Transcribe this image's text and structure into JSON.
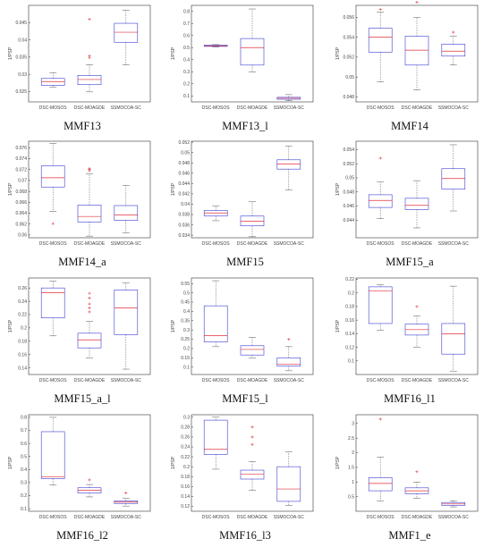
{
  "figure": {
    "colors": {
      "box": "#3b3bd6",
      "median": "#e0303a",
      "whisker": "#555555",
      "outlier": "#e0303a",
      "frame": "#333333"
    }
  },
  "chart_data": [
    {
      "type": "box",
      "title": "MMF13",
      "ylabel": "1/PSP",
      "categories": [
        "DSC-MOSOS",
        "DSC-MOAGDE",
        "SSMOCOA-SC"
      ],
      "ylim": [
        0.022,
        0.05
      ],
      "yticks": [
        0.025,
        0.03,
        0.035,
        0.04,
        0.045
      ],
      "yticklabels": [
        "0.025",
        "0.03",
        "0.035",
        "0.04",
        "0.045"
      ],
      "boxes": [
        {
          "min": 0.0262,
          "q1": 0.0268,
          "median": 0.0279,
          "q3": 0.0288,
          "max": 0.0305,
          "outliers": []
        },
        {
          "min": 0.0249,
          "q1": 0.027,
          "median": 0.0285,
          "q3": 0.0297,
          "max": 0.0328,
          "outliers": [
            0.0348,
            0.0353,
            0.046
          ]
        },
        {
          "min": 0.0327,
          "q1": 0.0393,
          "median": 0.0422,
          "q3": 0.0448,
          "max": 0.0486,
          "outliers": []
        }
      ]
    },
    {
      "type": "box",
      "title": "MMF13_l",
      "ylabel": "1/PSP",
      "categories": [
        "DSC-MOSOS",
        "DSC-MOAGDE",
        "SSMOCOA-SC"
      ],
      "ylim": [
        0.05,
        0.85
      ],
      "yticks": [
        0.1,
        0.2,
        0.3,
        0.4,
        0.5,
        0.6,
        0.7,
        0.8
      ],
      "yticklabels": [
        "0.1",
        "0.2",
        "0.3",
        "0.4",
        "0.5",
        "0.6",
        "0.7",
        "0.8"
      ],
      "boxes": [
        {
          "min": 0.505,
          "q1": 0.51,
          "median": 0.515,
          "q3": 0.52,
          "max": 0.525,
          "outliers": []
        },
        {
          "min": 0.3,
          "q1": 0.355,
          "median": 0.5,
          "q3": 0.575,
          "max": 0.82,
          "outliers": []
        },
        {
          "min": 0.06,
          "q1": 0.072,
          "median": 0.08,
          "q3": 0.088,
          "max": 0.11,
          "outliers": []
        }
      ]
    },
    {
      "type": "box",
      "title": "MMF14",
      "ylabel": "1/PSP",
      "categories": [
        "DSC-MOSOS",
        "DSC-MOAGDE",
        "SSMOCOA-SC"
      ],
      "ylim": [
        0.0475,
        0.0572
      ],
      "yticks": [
        0.048,
        0.05,
        0.052,
        0.054,
        0.056
      ],
      "yticklabels": [
        "0.048",
        "0.05",
        "0.052",
        "0.054",
        "0.056"
      ],
      "boxes": [
        {
          "min": 0.0495,
          "q1": 0.0525,
          "median": 0.054,
          "q3": 0.0549,
          "max": 0.0565,
          "outliers": [
            0.0568
          ]
        },
        {
          "min": 0.0487,
          "q1": 0.0512,
          "median": 0.0527,
          "q3": 0.0541,
          "max": 0.056,
          "outliers": [
            0.0575
          ]
        },
        {
          "min": 0.0512,
          "q1": 0.0521,
          "median": 0.0526,
          "q3": 0.0533,
          "max": 0.0541,
          "outliers": [
            0.0545
          ]
        }
      ]
    },
    {
      "type": "box",
      "title": "MMF14_a",
      "ylabel": "1/PSP",
      "categories": [
        "DSC-MOSOS",
        "DSC-MOAGDE",
        "SSMOCOA-SC"
      ],
      "ylim": [
        0.0595,
        0.0772
      ],
      "yticks": [
        0.06,
        0.062,
        0.064,
        0.066,
        0.068,
        0.07,
        0.072,
        0.074,
        0.076
      ],
      "yticklabels": [
        "0.06",
        "0.062",
        "0.064",
        "0.066",
        "0.068",
        "0.07",
        "0.072",
        "0.074",
        "0.076"
      ],
      "boxes": [
        {
          "min": 0.0643,
          "q1": 0.0688,
          "median": 0.0705,
          "q3": 0.0727,
          "max": 0.0768,
          "outliers": [
            0.0621
          ]
        },
        {
          "min": 0.0598,
          "q1": 0.0624,
          "median": 0.0634,
          "q3": 0.0655,
          "max": 0.0712,
          "outliers": [
            0.0718,
            0.072,
            0.0722
          ]
        },
        {
          "min": 0.0604,
          "q1": 0.0627,
          "median": 0.0637,
          "q3": 0.0654,
          "max": 0.0691,
          "outliers": []
        }
      ]
    },
    {
      "type": "box",
      "title": "MMF15",
      "ylabel": "1/PSP",
      "categories": [
        "DSC-MOSOS",
        "DSC-MOAGDE",
        "SSMOCOA-SC"
      ],
      "ylim": [
        0.0335,
        0.0522
      ],
      "yticks": [
        0.034,
        0.036,
        0.038,
        0.04,
        0.042,
        0.044,
        0.046,
        0.048,
        0.05,
        0.052
      ],
      "yticklabels": [
        "0.034",
        "0.036",
        "0.038",
        "0.04",
        "0.042",
        "0.044",
        "0.046",
        "0.048",
        "0.05",
        "0.052"
      ],
      "boxes": [
        {
          "min": 0.0368,
          "q1": 0.0377,
          "median": 0.0383,
          "q3": 0.0388,
          "max": 0.0397,
          "outliers": []
        },
        {
          "min": 0.0337,
          "q1": 0.0358,
          "median": 0.0367,
          "q3": 0.0377,
          "max": 0.0405,
          "outliers": []
        },
        {
          "min": 0.0428,
          "q1": 0.0468,
          "median": 0.0478,
          "q3": 0.0486,
          "max": 0.0512,
          "outliers": []
        }
      ]
    },
    {
      "type": "box",
      "title": "MMF15_a",
      "ylabel": "1/PSP",
      "categories": [
        "DSC-MOSOS",
        "DSC-MOAGDE",
        "SSMOCOA-SC"
      ],
      "ylim": [
        0.0415,
        0.0552
      ],
      "yticks": [
        0.044,
        0.046,
        0.048,
        0.05,
        0.052,
        0.054
      ],
      "yticklabels": [
        "0.044",
        "0.046",
        "0.048",
        "0.05",
        "0.052",
        "0.054"
      ],
      "boxes": [
        {
          "min": 0.0442,
          "q1": 0.0458,
          "median": 0.0468,
          "q3": 0.0476,
          "max": 0.0494,
          "outliers": [
            0.0528
          ]
        },
        {
          "min": 0.0429,
          "q1": 0.0455,
          "median": 0.0461,
          "q3": 0.0471,
          "max": 0.0496,
          "outliers": []
        },
        {
          "min": 0.0453,
          "q1": 0.0484,
          "median": 0.0499,
          "q3": 0.0513,
          "max": 0.0547,
          "outliers": []
        }
      ]
    },
    {
      "type": "box",
      "title": "MMF15_a_l",
      "ylabel": "1/PSP",
      "categories": [
        "DSC-MOSOS",
        "DSC-MOAGDE",
        "SSMOCOA-SC"
      ],
      "ylim": [
        0.13,
        0.275
      ],
      "yticks": [
        0.14,
        0.16,
        0.18,
        0.2,
        0.22,
        0.24,
        0.26
      ],
      "yticklabels": [
        "0.14",
        "0.16",
        "0.18",
        "0.2",
        "0.22",
        "0.24",
        "0.26"
      ],
      "boxes": [
        {
          "min": 0.188,
          "q1": 0.215,
          "median": 0.253,
          "q3": 0.26,
          "max": 0.27,
          "outliers": []
        },
        {
          "min": 0.155,
          "q1": 0.17,
          "median": 0.182,
          "q3": 0.192,
          "max": 0.21,
          "outliers": [
            0.224,
            0.23,
            0.236,
            0.245,
            0.252
          ]
        },
        {
          "min": 0.138,
          "q1": 0.19,
          "median": 0.23,
          "q3": 0.257,
          "max": 0.268,
          "outliers": []
        }
      ]
    },
    {
      "type": "box",
      "title": "MMF15_l",
      "ylabel": "1/PSP",
      "categories": [
        "DSC-MOSOS",
        "DSC-MOAGDE",
        "SSMOCOA-SC"
      ],
      "ylim": [
        0.06,
        0.58
      ],
      "yticks": [
        0.1,
        0.15,
        0.2,
        0.25,
        0.3,
        0.35,
        0.4,
        0.45,
        0.5,
        0.55
      ],
      "yticklabels": [
        "0.1",
        "0.15",
        "0.2",
        "0.25",
        "0.3",
        "0.35",
        "0.4",
        "0.45",
        "0.5",
        "0.55"
      ],
      "boxes": [
        {
          "min": 0.21,
          "q1": 0.235,
          "median": 0.27,
          "q3": 0.43,
          "max": 0.565,
          "outliers": []
        },
        {
          "min": 0.15,
          "q1": 0.165,
          "median": 0.195,
          "q3": 0.215,
          "max": 0.26,
          "outliers": []
        },
        {
          "min": 0.08,
          "q1": 0.105,
          "median": 0.115,
          "q3": 0.15,
          "max": 0.21,
          "outliers": [
            0.25
          ]
        }
      ]
    },
    {
      "type": "box",
      "title": "MMF16_l1",
      "ylabel": "1/PSP",
      "categories": [
        "DSC-MOSOS",
        "DSC-MOAGDE",
        "SSMOCOA-SC"
      ],
      "ylim": [
        0.08,
        0.222
      ],
      "yticks": [
        0.1,
        0.12,
        0.14,
        0.16,
        0.18,
        0.2,
        0.22
      ],
      "yticklabels": [
        "0.1",
        "0.12",
        "0.14",
        "0.16",
        "0.18",
        "0.2",
        "0.22"
      ],
      "boxes": [
        {
          "min": 0.145,
          "q1": 0.155,
          "median": 0.203,
          "q3": 0.209,
          "max": 0.212,
          "outliers": []
        },
        {
          "min": 0.12,
          "q1": 0.138,
          "median": 0.146,
          "q3": 0.154,
          "max": 0.166,
          "outliers": [
            0.18
          ]
        },
        {
          "min": 0.085,
          "q1": 0.11,
          "median": 0.14,
          "q3": 0.155,
          "max": 0.21,
          "outliers": []
        }
      ]
    },
    {
      "type": "box",
      "title": "MMF16_l2",
      "ylabel": "1/PSP",
      "categories": [
        "DSC-MOSOS",
        "DSC-MOAGDE",
        "SSMOCOA-SC"
      ],
      "ylim": [
        0.08,
        0.82
      ],
      "yticks": [
        0.1,
        0.2,
        0.3,
        0.4,
        0.5,
        0.6,
        0.7,
        0.8
      ],
      "yticklabels": [
        "0.1",
        "0.2",
        "0.3",
        "0.4",
        "0.5",
        "0.6",
        "0.7",
        "0.8"
      ],
      "boxes": [
        {
          "min": 0.28,
          "q1": 0.33,
          "median": 0.345,
          "q3": 0.69,
          "max": 0.8,
          "outliers": []
        },
        {
          "min": 0.19,
          "q1": 0.22,
          "median": 0.24,
          "q3": 0.26,
          "max": 0.285,
          "outliers": [
            0.32
          ]
        },
        {
          "min": 0.12,
          "q1": 0.14,
          "median": 0.15,
          "q3": 0.16,
          "max": 0.18,
          "outliers": [
            0.22
          ]
        }
      ]
    },
    {
      "type": "box",
      "title": "MMF16_l3",
      "ylabel": "1/PSP",
      "categories": [
        "DSC-MOSOS",
        "DSC-MOAGDE",
        "SSMOCOA-SC"
      ],
      "ylim": [
        0.11,
        0.305
      ],
      "yticks": [
        0.12,
        0.14,
        0.16,
        0.18,
        0.2,
        0.22,
        0.24,
        0.26,
        0.28,
        0.3
      ],
      "yticklabels": [
        "0.12",
        "0.14",
        "0.16",
        "0.18",
        "0.2",
        "0.22",
        "0.24",
        "0.26",
        "0.28",
        "0.3"
      ],
      "boxes": [
        {
          "min": 0.195,
          "q1": 0.225,
          "median": 0.235,
          "q3": 0.294,
          "max": 0.3,
          "outliers": []
        },
        {
          "min": 0.152,
          "q1": 0.175,
          "median": 0.185,
          "q3": 0.193,
          "max": 0.21,
          "outliers": [
            0.245,
            0.26,
            0.28
          ]
        },
        {
          "min": 0.122,
          "q1": 0.13,
          "median": 0.155,
          "q3": 0.2,
          "max": 0.23,
          "outliers": []
        }
      ]
    },
    {
      "type": "box",
      "title": "MMF1_e",
      "ylabel": "1/PSP",
      "categories": [
        "DSC-MOSOS",
        "DSC-MOAGDE",
        "SSMOCOA-SC"
      ],
      "ylim": [
        0,
        3.3
      ],
      "yticks": [
        0.5,
        1,
        1.5,
        2,
        2.5,
        3
      ],
      "yticklabels": [
        "0.5",
        "1",
        "1.5",
        "2",
        "2.5",
        "3"
      ],
      "boxes": [
        {
          "min": 0.35,
          "q1": 0.7,
          "median": 0.95,
          "q3": 1.15,
          "max": 1.85,
          "outliers": [
            3.15
          ]
        },
        {
          "min": 0.45,
          "q1": 0.6,
          "median": 0.7,
          "q3": 0.8,
          "max": 1.0,
          "outliers": [
            1.35
          ]
        },
        {
          "min": 0.15,
          "q1": 0.2,
          "median": 0.25,
          "q3": 0.3,
          "max": 0.36,
          "outliers": []
        }
      ]
    }
  ]
}
